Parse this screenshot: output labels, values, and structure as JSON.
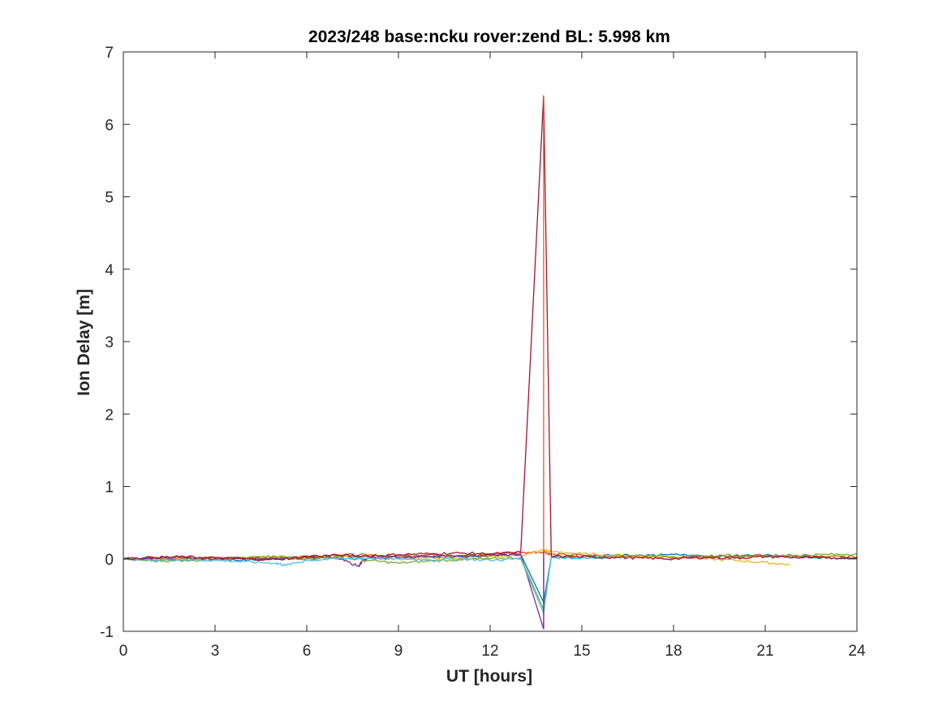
{
  "chart_data": {
    "type": "line",
    "title": "2023/248 base:ncku rover:zend BL:  5.998 km",
    "xlabel": "UT [hours]",
    "ylabel": "Ion Delay [m]",
    "xlim": [
      0,
      24
    ],
    "ylim": [
      -1,
      7
    ],
    "xticks": [
      "0",
      "3",
      "6",
      "9",
      "12",
      "15",
      "18",
      "21",
      "24"
    ],
    "yticks": [
      "-1",
      "0",
      "1",
      "2",
      "3",
      "4",
      "5",
      "6",
      "7"
    ],
    "grid": false,
    "legend": "none",
    "spike": {
      "x": 13.75,
      "ymax": 6.4,
      "ymin": -0.97
    },
    "series": [
      {
        "color": "#0072BD",
        "x": [
          0,
          1,
          2,
          3,
          4,
          5,
          6,
          7,
          8,
          9,
          10,
          11,
          12,
          13,
          13.75,
          14,
          15,
          16,
          17,
          18,
          19,
          20,
          21,
          22,
          23,
          24
        ],
        "y": [
          0.0,
          0.01,
          -0.01,
          0.0,
          -0.02,
          0.01,
          0.02,
          0.04,
          0.03,
          0.02,
          0.03,
          0.04,
          0.05,
          0.06,
          -0.6,
          0.02,
          0.03,
          0.05,
          0.04,
          0.06,
          0.03,
          0.04,
          0.05,
          0.03,
          0.02,
          0.0
        ]
      },
      {
        "color": "#D95319",
        "x": [
          0,
          1,
          2,
          3,
          4,
          5,
          6,
          7,
          8,
          9,
          10,
          11,
          12,
          13,
          13.75,
          14,
          15,
          16,
          17,
          18,
          19,
          20,
          21,
          22,
          23,
          24
        ],
        "y": [
          0.0,
          0.02,
          0.01,
          0.02,
          0.0,
          0.02,
          0.04,
          0.06,
          0.05,
          0.04,
          0.06,
          0.05,
          0.07,
          0.08,
          0.1,
          0.06,
          0.05,
          0.04,
          0.03,
          0.02,
          0.04,
          0.03,
          0.05,
          0.04,
          0.03,
          0.03
        ]
      },
      {
        "color": "#EDB120",
        "x": [
          0,
          1,
          2,
          3,
          4,
          5,
          6,
          7,
          8,
          9,
          10,
          11,
          12,
          13,
          13.75,
          14,
          15,
          16,
          17,
          18,
          19,
          20,
          21,
          21.8
        ],
        "y": [
          0.0,
          -0.01,
          0.0,
          0.01,
          0.02,
          0.03,
          0.01,
          0.03,
          0.02,
          0.0,
          0.02,
          0.01,
          0.03,
          0.05,
          0.12,
          0.1,
          0.07,
          0.05,
          0.04,
          0.03,
          0.0,
          -0.02,
          -0.05,
          -0.08
        ]
      },
      {
        "color": "#7E2F8E",
        "x": [
          0,
          1,
          2,
          3,
          4,
          5,
          6,
          7,
          7.7,
          7.8,
          8,
          9,
          10,
          11,
          12,
          13,
          13.75
        ],
        "y": [
          0.0,
          0.01,
          0.02,
          0.0,
          0.01,
          0.0,
          0.02,
          0.01,
          -0.1,
          -0.04,
          0.01,
          0.02,
          0.04,
          0.03,
          0.05,
          0.06,
          -0.97
        ]
      },
      {
        "color": "#77AC30",
        "x": [
          0,
          1,
          2,
          3,
          4,
          5,
          6,
          7,
          8,
          9,
          10,
          11,
          12,
          13,
          13.75,
          14,
          15,
          16,
          17,
          18,
          19,
          20,
          21,
          22,
          23,
          24
        ],
        "y": [
          0.0,
          -0.03,
          -0.02,
          -0.01,
          0.01,
          0.03,
          0.0,
          0.02,
          -0.02,
          -0.06,
          -0.03,
          -0.01,
          0.0,
          0.02,
          -0.7,
          0.03,
          0.02,
          0.04,
          0.05,
          0.03,
          0.04,
          0.05,
          0.04,
          0.05,
          0.06,
          0.07
        ]
      },
      {
        "color": "#4DBEEE",
        "x": [
          0,
          1,
          2,
          3,
          4,
          5,
          5.3,
          6,
          7,
          8,
          9,
          10,
          11,
          12,
          13,
          13.75,
          14,
          15,
          16
        ],
        "y": [
          0.0,
          -0.02,
          -0.01,
          -0.02,
          -0.04,
          -0.06,
          -0.09,
          -0.02,
          0.0,
          0.01,
          0.0,
          -0.01,
          0.0,
          -0.02,
          0.0,
          -0.75,
          0.02,
          0.01,
          0.02
        ]
      },
      {
        "color": "#A2142F",
        "x": [
          0,
          1,
          2,
          3,
          4,
          5,
          6,
          7,
          8,
          9,
          10,
          11,
          12,
          13,
          13.75,
          14,
          15,
          16,
          17,
          18,
          19,
          20,
          21,
          22,
          23,
          24
        ],
        "y": [
          0.0,
          0.02,
          0.03,
          0.01,
          0.0,
          -0.01,
          0.03,
          0.05,
          0.04,
          0.06,
          0.07,
          0.08,
          0.07,
          0.09,
          6.4,
          0.04,
          0.03,
          0.02,
          0.01,
          0.0,
          0.02,
          0.01,
          0.03,
          0.02,
          0.01,
          0.02
        ]
      }
    ]
  }
}
